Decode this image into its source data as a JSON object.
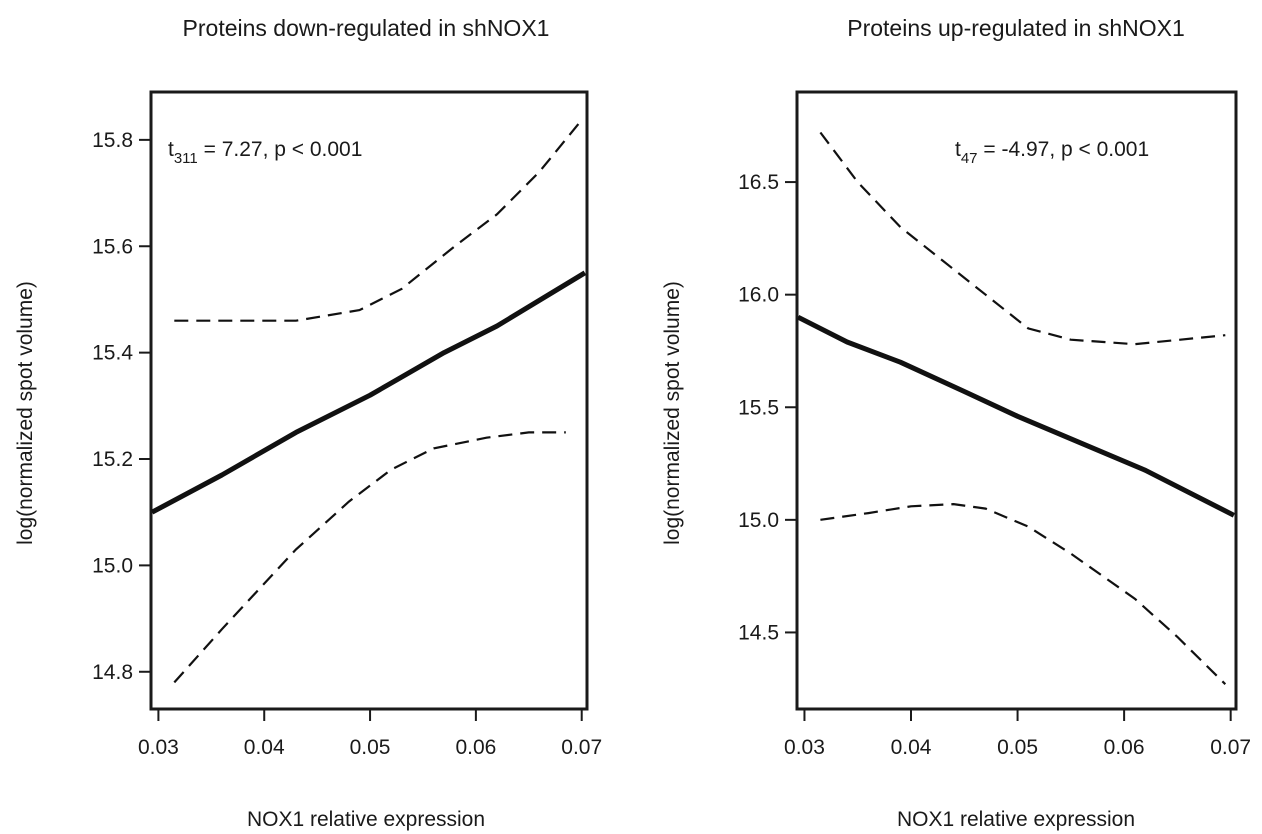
{
  "chart_data": [
    {
      "type": "line",
      "title": "Proteins down-regulated in shNOX1",
      "xlabel": "NOX1 relative expression",
      "ylabel": "log(normalized spot volume)",
      "annotation": {
        "t_base": "t",
        "t_sub": "311",
        "t_rest": " = 7.27, p < 0.001"
      },
      "xlim": [
        0.0293,
        0.0705
      ],
      "ylim": [
        14.73,
        15.89
      ],
      "xticks": [
        0.03,
        0.04,
        0.05,
        0.06,
        0.07
      ],
      "xtick_labels": [
        "0.03",
        "0.04",
        "0.05",
        "0.06",
        "0.07"
      ],
      "yticks": [
        14.8,
        15.0,
        15.2,
        15.4,
        15.6,
        15.8
      ],
      "ytick_labels": [
        "14.8",
        "15.0",
        "15.2",
        "15.4",
        "15.6",
        "15.8"
      ],
      "series": [
        {
          "style": "solid",
          "x": [
            0.0294,
            0.036,
            0.043,
            0.05,
            0.057,
            0.062,
            0.0703
          ],
          "y": [
            15.1,
            15.17,
            15.25,
            15.32,
            15.4,
            15.45,
            15.55
          ]
        },
        {
          "style": "dashed",
          "x": [
            0.0315,
            0.036,
            0.043,
            0.049,
            0.053,
            0.058,
            0.062,
            0.066,
            0.0701
          ],
          "y": [
            15.46,
            15.46,
            15.46,
            15.48,
            15.52,
            15.6,
            15.66,
            15.74,
            15.84
          ]
        },
        {
          "style": "dashed",
          "x": [
            0.0315,
            0.036,
            0.043,
            0.048,
            0.052,
            0.056,
            0.061,
            0.065,
            0.0685
          ],
          "y": [
            14.78,
            14.88,
            15.03,
            15.12,
            15.18,
            15.22,
            15.24,
            15.25,
            15.25
          ]
        }
      ]
    },
    {
      "type": "line",
      "title": "Proteins up-regulated in shNOX1",
      "xlabel": "NOX1 relative expression",
      "ylabel": "log(normalized spot volume)",
      "annotation": {
        "t_base": "t",
        "t_sub": "47",
        "t_rest": " = -4.97, p < 0.001"
      },
      "xlim": [
        0.0293,
        0.0705
      ],
      "ylim": [
        14.16,
        16.9
      ],
      "xticks": [
        0.03,
        0.04,
        0.05,
        0.06,
        0.07
      ],
      "xtick_labels": [
        "0.03",
        "0.04",
        "0.05",
        "0.06",
        "0.07"
      ],
      "yticks": [
        14.5,
        15.0,
        15.5,
        16.0,
        16.5
      ],
      "ytick_labels": [
        "14.5",
        "15.0",
        "15.5",
        "16.0",
        "16.5"
      ],
      "series": [
        {
          "style": "solid",
          "x": [
            0.0294,
            0.034,
            0.039,
            0.045,
            0.05,
            0.056,
            0.062,
            0.0703
          ],
          "y": [
            15.9,
            15.79,
            15.7,
            15.57,
            15.46,
            15.34,
            15.22,
            15.02
          ]
        },
        {
          "style": "dashed",
          "x": [
            0.0315,
            0.035,
            0.039,
            0.043,
            0.047,
            0.051,
            0.055,
            0.061,
            0.0695
          ],
          "y": [
            16.72,
            16.5,
            16.3,
            16.15,
            16.0,
            15.85,
            15.8,
            15.78,
            15.82
          ]
        },
        {
          "style": "dashed",
          "x": [
            0.0315,
            0.036,
            0.04,
            0.044,
            0.047,
            0.051,
            0.055,
            0.061,
            0.065,
            0.0695
          ],
          "y": [
            15.0,
            15.03,
            15.06,
            15.07,
            15.05,
            14.97,
            14.85,
            14.65,
            14.48,
            14.27
          ]
        }
      ]
    }
  ]
}
